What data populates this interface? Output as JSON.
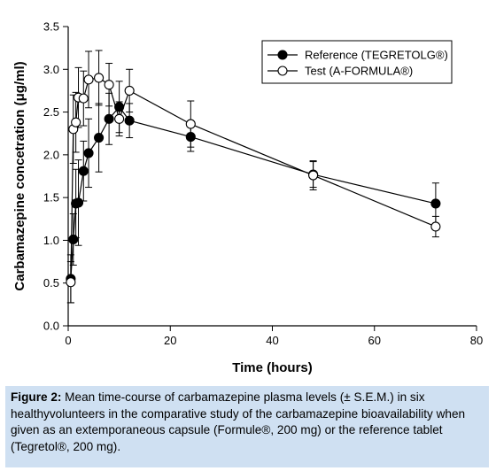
{
  "chart_data": {
    "type": "line",
    "xlabel": "Time (hours)",
    "ylabel": "Carbamazepine concetration (μg/ml)",
    "xlim": [
      0,
      80
    ],
    "ylim": [
      0.0,
      3.5
    ],
    "xticks": [
      "0",
      "20",
      "40",
      "60",
      "80"
    ],
    "yticks": [
      "0.0",
      "0.5",
      "1.0",
      "1.5",
      "2.0",
      "2.5",
      "3.0",
      "3.5"
    ],
    "grid": false,
    "legend_position": "top-right",
    "series": [
      {
        "name": "Reference (TEGRETOLG®)",
        "marker": "filled-circle",
        "color": "#000000",
        "x": [
          0.5,
          1,
          1.5,
          2,
          3,
          4,
          6,
          8,
          10,
          12,
          24,
          48,
          72
        ],
        "y": [
          0.55,
          1.01,
          1.43,
          1.44,
          1.81,
          2.02,
          2.2,
          2.42,
          2.56,
          2.4,
          2.21,
          1.77,
          1.43
        ],
        "err": [
          0.28,
          0.3,
          0.4,
          0.5,
          0.35,
          0.4,
          0.4,
          0.3,
          0.3,
          0.2,
          0.17,
          0.15,
          0.24
        ]
      },
      {
        "name": "Test (A-FORMULA®)",
        "marker": "open-circle",
        "color": "#000000",
        "x": [
          0.5,
          1,
          1.5,
          2,
          3,
          4,
          6,
          8,
          10,
          12,
          24,
          48,
          72
        ],
        "y": [
          0.51,
          2.3,
          2.38,
          2.67,
          2.66,
          2.88,
          2.9,
          2.82,
          2.42,
          2.75,
          2.36,
          1.76,
          1.16
        ],
        "err": [
          0.24,
          0.4,
          0.35,
          0.35,
          0.32,
          0.33,
          0.32,
          0.25,
          0.2,
          0.25,
          0.27,
          0.17,
          0.12
        ]
      }
    ]
  },
  "caption": {
    "label": "Figure 2:",
    "text": " Mean time-course of carbamazepine plasma levels (± S.E.M.) in six healthyvolunteers in the comparative study of the carbamazepine bioavailability when given as an extemporaneous capsule (Formule®, 200 mg) or the reference tablet (Tegretol®, 200 mg)."
  }
}
